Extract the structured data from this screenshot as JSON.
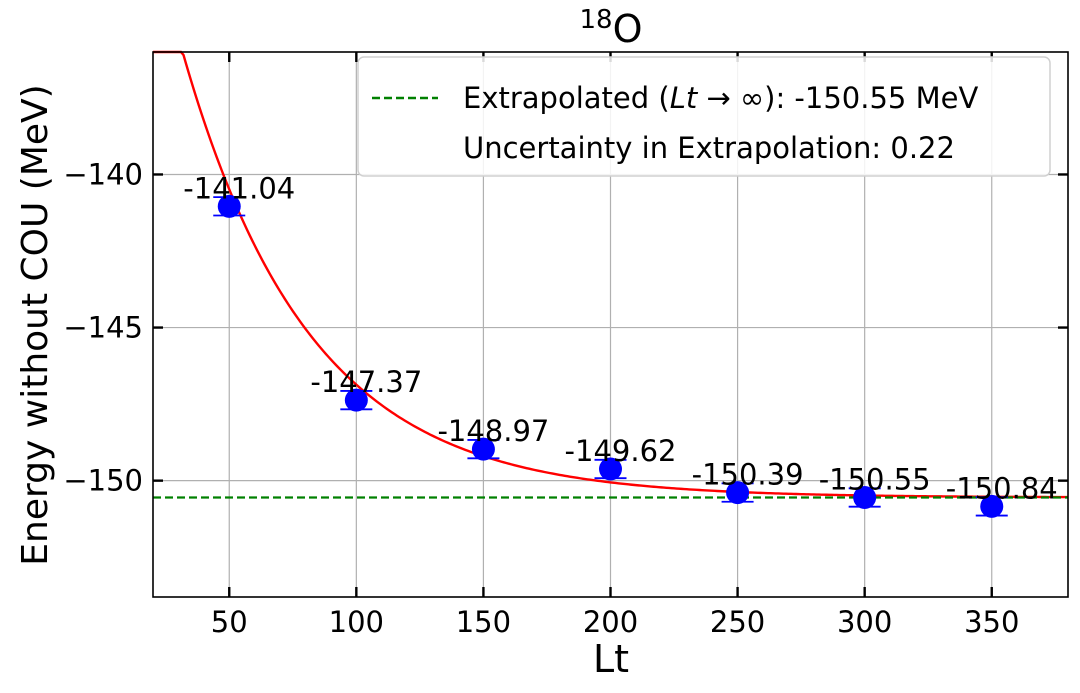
{
  "chart_data": {
    "type": "scatter",
    "title_base": "O",
    "title_superscript": "18",
    "xlabel": "Lt",
    "ylabel": "Energy without COU (MeV)",
    "xlim": [
      20,
      380
    ],
    "ylim": [
      -153.8,
      -136.0
    ],
    "x_ticks": [
      50,
      100,
      150,
      200,
      250,
      300,
      350
    ],
    "y_ticks": [
      -140,
      -145,
      -150
    ],
    "y_tick_labels": [
      "−140",
      "−145",
      "−150"
    ],
    "grid": true,
    "legend_position": "top-right",
    "series": [
      {
        "type": "errorbar-points",
        "color": "#0000ff",
        "points": [
          {
            "x": 50,
            "y": -141.04,
            "err": 0.3,
            "label": "-141.04"
          },
          {
            "x": 100,
            "y": -147.37,
            "err": 0.3,
            "label": "-147.37"
          },
          {
            "x": 150,
            "y": -148.97,
            "err": 0.3,
            "label": "-148.97"
          },
          {
            "x": 200,
            "y": -149.62,
            "err": 0.3,
            "label": "-149.62"
          },
          {
            "x": 250,
            "y": -150.39,
            "err": 0.3,
            "label": "-150.39"
          },
          {
            "x": 300,
            "y": -150.55,
            "err": 0.3,
            "label": "-150.55"
          },
          {
            "x": 350,
            "y": -150.84,
            "err": 0.3,
            "label": "-150.84"
          }
        ]
      },
      {
        "type": "fit-curve",
        "color": "#ff0000",
        "model": "E_inf + A * exp(-k * Lt)",
        "E_inf": -150.55,
        "A": 27.5,
        "k": 0.0201
      },
      {
        "type": "hline",
        "color": "#008000",
        "y": -150.55,
        "style": "dashed"
      }
    ],
    "legend": {
      "line1_prefix": "Extrapolated (",
      "line1_italic": "Lt",
      "line1_arrow": " → ∞",
      "line1_suffix": "): -150.55 MeV",
      "line2": "Uncertainty in Extrapolation: 0.22"
    }
  }
}
